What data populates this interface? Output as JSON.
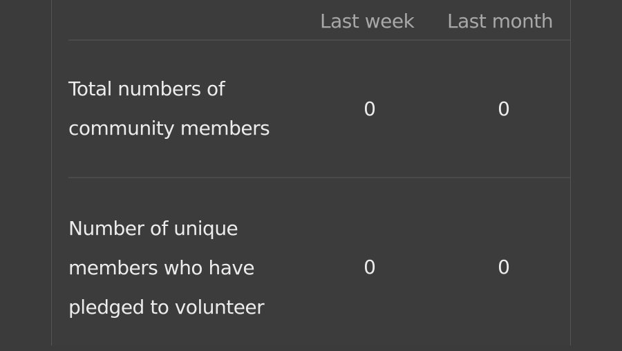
{
  "table": {
    "columns": [
      "Last week",
      "Last month"
    ],
    "rows": [
      {
        "label": "Total numbers of community members",
        "lines": [
          "Total numbers of",
          "community members"
        ],
        "values": [
          "0",
          "0"
        ]
      },
      {
        "label": "Number of unique members who have pledged to volunteer",
        "lines": [
          "Number of unique",
          "members who have",
          "pledged to volunteer"
        ],
        "values": [
          "0",
          "0"
        ]
      }
    ]
  }
}
